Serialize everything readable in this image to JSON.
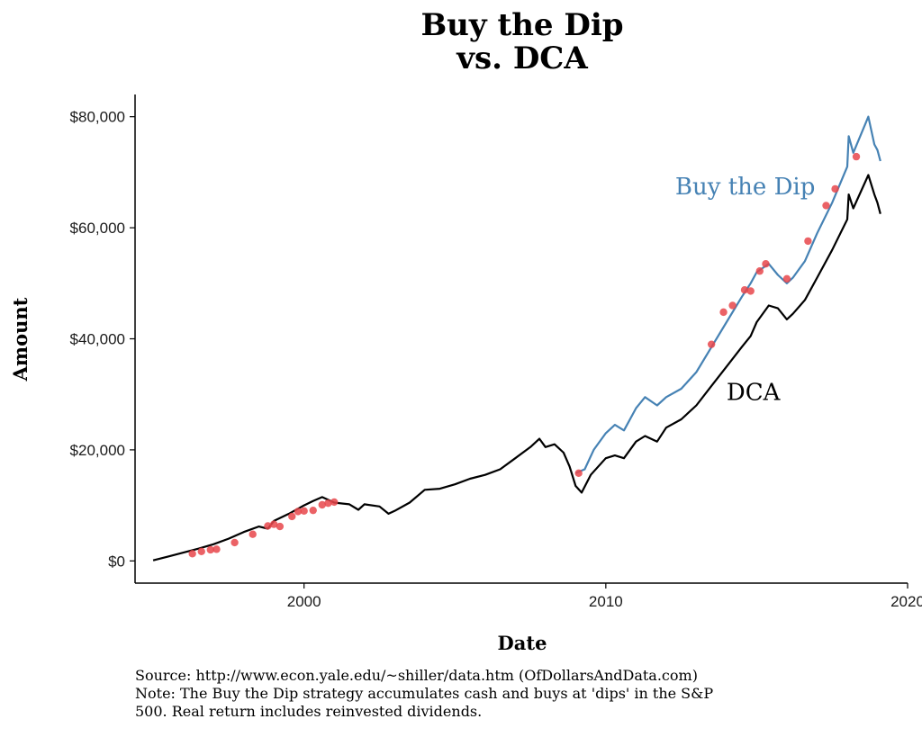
{
  "chart_data": {
    "type": "line",
    "title": [
      "Buy the Dip",
      "vs. DCA"
    ],
    "xlabel": "Date",
    "ylabel": "Amount",
    "xlim": [
      1994.4,
      2020
    ],
    "ylim": [
      -4000,
      84000
    ],
    "x_ticks": [
      2000,
      2010,
      2020
    ],
    "x_tick_labels": [
      "2000",
      "2010",
      "2020"
    ],
    "y_ticks": [
      0,
      20000,
      40000,
      60000,
      80000
    ],
    "y_tick_labels": [
      "$0",
      "$20,000",
      "$40,000",
      "$60,000",
      "$80,000"
    ],
    "grid": false,
    "legend": "none",
    "colors": {
      "buy_the_dip": "#4682B4",
      "dca": "#000000",
      "dips": "#E8474B"
    },
    "series": [
      {
        "name": "DCA",
        "color": "#000000",
        "label_at": [
          2014,
          29000
        ],
        "points": [
          [
            1995.0,
            100
          ],
          [
            1995.5,
            800
          ],
          [
            1996.0,
            1500
          ],
          [
            1996.5,
            2200
          ],
          [
            1997.0,
            3000
          ],
          [
            1997.5,
            4000
          ],
          [
            1998.0,
            5200
          ],
          [
            1998.5,
            6200
          ],
          [
            1998.8,
            5800
          ],
          [
            1999.0,
            7200
          ],
          [
            1999.5,
            8500
          ],
          [
            2000.0,
            10000
          ],
          [
            2000.3,
            10800
          ],
          [
            2000.6,
            11500
          ],
          [
            2001.0,
            10500
          ],
          [
            2001.5,
            10200
          ],
          [
            2001.8,
            9200
          ],
          [
            2002.0,
            10200
          ],
          [
            2002.5,
            9800
          ],
          [
            2002.8,
            8500
          ],
          [
            2003.0,
            9000
          ],
          [
            2003.5,
            10500
          ],
          [
            2004.0,
            12800
          ],
          [
            2004.5,
            13000
          ],
          [
            2005.0,
            13800
          ],
          [
            2005.5,
            14800
          ],
          [
            2006.0,
            15500
          ],
          [
            2006.5,
            16500
          ],
          [
            2007.0,
            18500
          ],
          [
            2007.5,
            20500
          ],
          [
            2007.8,
            22000
          ],
          [
            2008.0,
            20500
          ],
          [
            2008.3,
            21000
          ],
          [
            2008.6,
            19500
          ],
          [
            2008.8,
            17000
          ],
          [
            2009.0,
            13500
          ],
          [
            2009.2,
            12300
          ],
          [
            2009.5,
            15500
          ],
          [
            2010.0,
            18500
          ],
          [
            2010.3,
            19000
          ],
          [
            2010.6,
            18500
          ],
          [
            2011.0,
            21500
          ],
          [
            2011.3,
            22500
          ],
          [
            2011.7,
            21500
          ],
          [
            2012.0,
            24000
          ],
          [
            2012.5,
            25500
          ],
          [
            2013.0,
            28000
          ],
          [
            2013.5,
            31500
          ],
          [
            2014.0,
            35000
          ],
          [
            2014.5,
            38500
          ],
          [
            2014.8,
            40500
          ],
          [
            2015.0,
            43000
          ],
          [
            2015.4,
            46000
          ],
          [
            2015.7,
            45500
          ],
          [
            2016.0,
            43500
          ],
          [
            2016.2,
            44500
          ],
          [
            2016.6,
            47000
          ],
          [
            2017.0,
            51000
          ],
          [
            2017.5,
            56000
          ],
          [
            2018.0,
            61500
          ],
          [
            2018.05,
            66000
          ],
          [
            2018.2,
            63500
          ],
          [
            2018.7,
            69500
          ],
          [
            2018.9,
            66000
          ],
          [
            2019.0,
            64500
          ],
          [
            2019.1,
            62500
          ]
        ]
      },
      {
        "name": "Buy the Dip",
        "color": "#4682B4",
        "label_at": [
          2012.3,
          66000
        ],
        "points": [
          [
            2009.0,
            15800
          ],
          [
            2009.3,
            16500
          ],
          [
            2009.6,
            20000
          ],
          [
            2010.0,
            23000
          ],
          [
            2010.3,
            24500
          ],
          [
            2010.6,
            23500
          ],
          [
            2011.0,
            27500
          ],
          [
            2011.3,
            29500
          ],
          [
            2011.7,
            28000
          ],
          [
            2012.0,
            29500
          ],
          [
            2012.5,
            31000
          ],
          [
            2013.0,
            34000
          ],
          [
            2013.5,
            38500
          ],
          [
            2014.0,
            43000
          ],
          [
            2014.5,
            47500
          ],
          [
            2014.8,
            50000
          ],
          [
            2015.0,
            52000
          ],
          [
            2015.4,
            53500
          ],
          [
            2015.7,
            51500
          ],
          [
            2016.0,
            50000
          ],
          [
            2016.2,
            51000
          ],
          [
            2016.6,
            54000
          ],
          [
            2017.0,
            59000
          ],
          [
            2017.5,
            64500
          ],
          [
            2018.0,
            71000
          ],
          [
            2018.05,
            76500
          ],
          [
            2018.2,
            73500
          ],
          [
            2018.7,
            80000
          ],
          [
            2018.9,
            75000
          ],
          [
            2019.0,
            74000
          ],
          [
            2019.1,
            72000
          ]
        ]
      }
    ],
    "dips": [
      [
        1996.3,
        1300
      ],
      [
        1996.6,
        1700
      ],
      [
        1996.9,
        2000
      ],
      [
        1997.1,
        2100
      ],
      [
        1997.7,
        3300
      ],
      [
        1998.3,
        4800
      ],
      [
        1998.8,
        6300
      ],
      [
        1999.0,
        6600
      ],
      [
        1999.2,
        6200
      ],
      [
        1999.6,
        8000
      ],
      [
        1999.8,
        8900
      ],
      [
        2000.0,
        9000
      ],
      [
        2000.3,
        9100
      ],
      [
        2000.6,
        10100
      ],
      [
        2000.8,
        10400
      ],
      [
        2001.0,
        10600
      ],
      [
        2009.1,
        15800
      ],
      [
        2013.5,
        39000
      ],
      [
        2013.9,
        44800
      ],
      [
        2014.2,
        46000
      ],
      [
        2014.6,
        48800
      ],
      [
        2014.8,
        48600
      ],
      [
        2015.1,
        52200
      ],
      [
        2015.3,
        53500
      ],
      [
        2016.0,
        50800
      ],
      [
        2016.7,
        57600
      ],
      [
        2017.3,
        64000
      ],
      [
        2017.6,
        67000
      ],
      [
        2018.3,
        72800
      ]
    ]
  },
  "footnote": [
    "Source:  http://www.econ.yale.edu/~shiller/data.htm (OfDollarsAndData.com)",
    "Note: The Buy the Dip strategy accumulates cash and buys at 'dips' in the S&P",
    "500. Real return includes reinvested dividends."
  ]
}
